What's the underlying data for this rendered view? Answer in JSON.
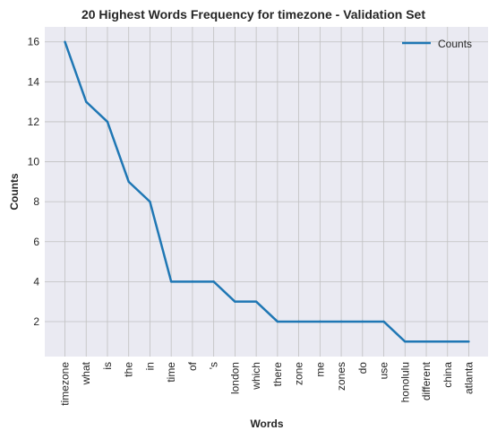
{
  "chart_data": {
    "type": "line",
    "title": "20 Highest Words Frequency for timezone - Validation Set",
    "xlabel": "Words",
    "ylabel": "Counts",
    "categories": [
      "timezone",
      "what",
      "is",
      "the",
      "in",
      "time",
      "of",
      "'s",
      "london",
      "which",
      "there",
      "zone",
      "me",
      "zones",
      "do",
      "use",
      "honolulu",
      "different",
      "china",
      "atlanta"
    ],
    "series": [
      {
        "name": "Counts",
        "values": [
          16,
          13,
          12,
          9,
          8,
          4,
          4,
          4,
          3,
          3,
          2,
          2,
          2,
          2,
          2,
          2,
          1,
          1,
          1,
          1
        ]
      }
    ],
    "ylim": [
      0.25,
      16.75
    ],
    "yticks": [
      2,
      4,
      6,
      8,
      10,
      12,
      14,
      16
    ],
    "grid": true,
    "legend_position": "top-right",
    "colors": {
      "line": "#1f77b4",
      "plot_background": "#eaeaf2",
      "grid": "#c0c0c0"
    }
  }
}
